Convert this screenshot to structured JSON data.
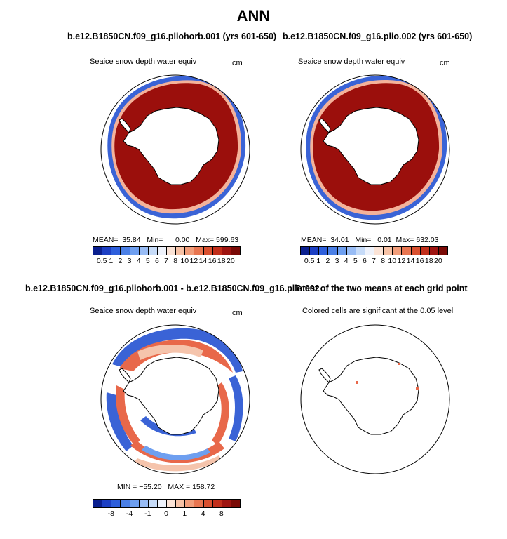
{
  "main_title": "ANN",
  "panels": [
    {
      "title": "b.e12.B1850CN.f09_g16.pliohorb.001 (yrs 601-650)",
      "variable": "Seaice snow depth water equiv",
      "units": "cm",
      "stats": {
        "mean_label": "MEAN=",
        "mean": "35.84",
        "min_label": "Min=",
        "min": "0.00",
        "max_label": "Max=",
        "max": "599.63"
      }
    },
    {
      "title": "b.e12.B1850CN.f09_g16.plio.002 (yrs 601-650)",
      "variable": "Seaice snow depth water equiv",
      "units": "cm",
      "stats": {
        "mean_label": "MEAN=",
        "mean": "34.01",
        "min_label": "Min=",
        "min": "0.01",
        "max_label": "Max=",
        "max": "632.03"
      }
    },
    {
      "title": "b.e12.B1850CN.f09_g16.pliohorb.001 - b.e12.B1850CN.f09_g16.plio.002",
      "variable": "Seaice snow depth water equiv",
      "units": "cm",
      "stats_text": "MIN = −55.20   MAX = 158.72"
    },
    {
      "title": "T-test of the two means at each grid point",
      "subtitle": "Colored cells are significant at the 0.05 level"
    }
  ],
  "colorbar_abs": {
    "labels": [
      "0.5",
      "1",
      "2",
      "3",
      "4",
      "5",
      "6",
      "7",
      "8",
      "10",
      "12",
      "14",
      "16",
      "18",
      "20"
    ],
    "colors": [
      "#0a1f8f",
      "#1c3fc4",
      "#2e5fdc",
      "#4a7fe6",
      "#6e9ff0",
      "#98bcf5",
      "#c6dbf8",
      "#eef2fb",
      "#fbe3d6",
      "#f7c2a6",
      "#f19d7a",
      "#e87550",
      "#d9502f",
      "#c12e1a",
      "#9e1410",
      "#7a0a06"
    ]
  },
  "colorbar_diff": {
    "labels": [
      "-8",
      "-4",
      "-1",
      "0",
      "1",
      "4",
      "8"
    ],
    "colors": [
      "#0a1f8f",
      "#1c3fc4",
      "#2e5fdc",
      "#4a7fe6",
      "#6e9ff0",
      "#98bcf5",
      "#c6dbf8",
      "#eef2fb",
      "#fbe3d6",
      "#f7c2a6",
      "#f19d7a",
      "#e87550",
      "#d9502f",
      "#c12e1a",
      "#9e1410",
      "#7a0a06"
    ]
  }
}
